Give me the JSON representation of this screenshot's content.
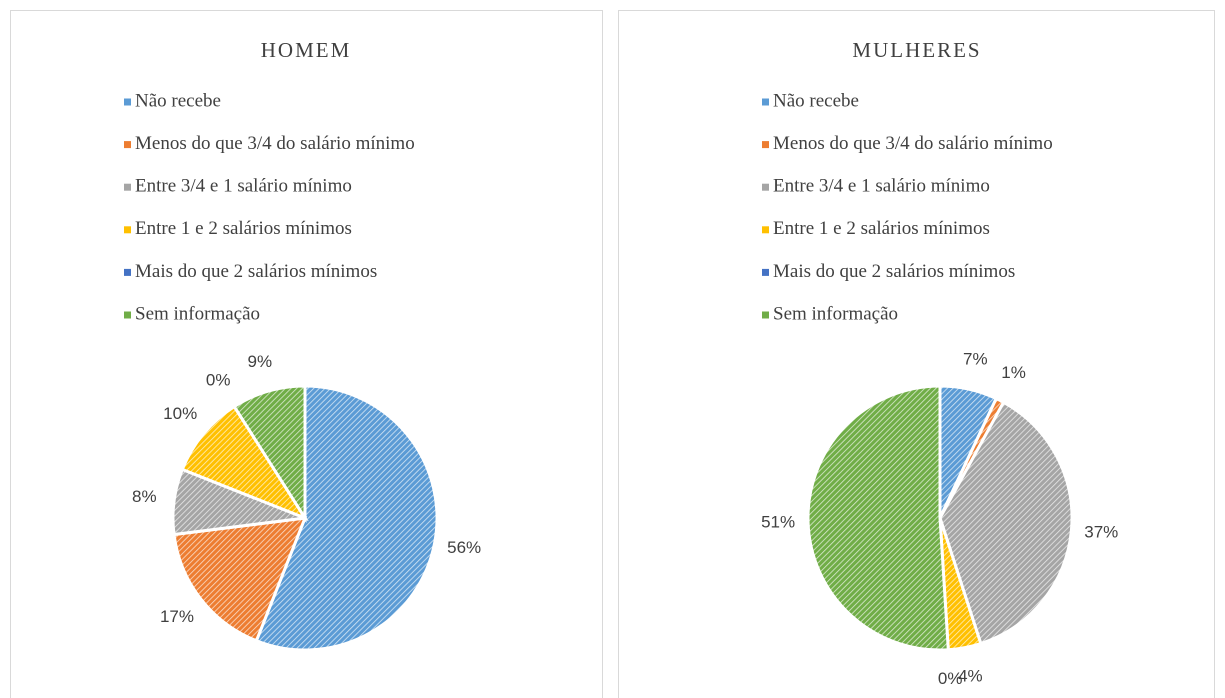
{
  "chart_data": [
    {
      "type": "pie",
      "title": "HOMEM",
      "categories": [
        "Não recebe",
        "Menos do que 3/4 do salário mínimo",
        "Entre 3/4 e 1 salário mínimo",
        "Entre 1 e 2 salários mínimos",
        "Mais do que 2 salários mínimos",
        "Sem informação"
      ],
      "values": [
        56,
        17,
        8,
        10,
        0,
        9
      ],
      "value_labels": [
        "56%",
        "17%",
        "8%",
        "10%",
        "0%",
        "9%"
      ],
      "colors": [
        "#5b9bd5",
        "#ed7d31",
        "#a5a5a5",
        "#ffc000",
        "#4472c4",
        "#70ad47"
      ]
    },
    {
      "type": "pie",
      "title": "MULHERES",
      "categories": [
        "Não recebe",
        "Menos do que 3/4 do salário mínimo",
        "Entre 3/4 e 1 salário mínimo",
        "Entre 1 e 2 salários mínimos",
        "Mais do que 2 salários mínimos",
        "Sem informação"
      ],
      "values": [
        7,
        1,
        37,
        4,
        0,
        51
      ],
      "value_labels": [
        "7%",
        "1%",
        "37%",
        "4%",
        "0%",
        "51%"
      ],
      "colors": [
        "#5b9bd5",
        "#ed7d31",
        "#a5a5a5",
        "#ffc000",
        "#4472c4",
        "#70ad47"
      ]
    }
  ]
}
